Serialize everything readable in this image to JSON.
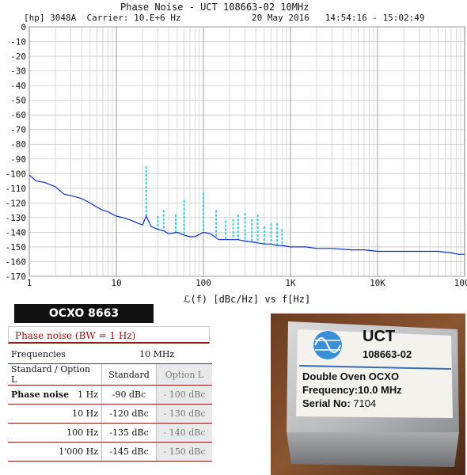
{
  "chart_data": {
    "type": "line",
    "title": "Phase Noise - UCT 108663-02 10MHz",
    "info_left": "[hp] 3048A  Carrier: 10.E+6 Hz",
    "info_right": "20 May 2016   14:54:16 - 15:02:49",
    "xlabel": "ℒ(f) [dBc/Hz] vs f[Hz]",
    "x_scale": "log",
    "xlim": [
      1,
      100000
    ],
    "ylim": [
      -170,
      0
    ],
    "grid": true,
    "x_tick_labels": [
      "1",
      "10",
      "100",
      "1K",
      "10K",
      "100K"
    ],
    "y_tick_labels": [
      "0",
      "-10",
      "-20",
      "-30",
      "-40",
      "-50",
      "-60",
      "-70",
      "-80",
      "-90",
      "-100",
      "-110",
      "-120",
      "-130",
      "-140",
      "-150",
      "-160",
      "-170"
    ],
    "series": [
      {
        "color": "#0b2bd6",
        "style": "solid",
        "x": [
          1,
          1.2,
          1.5,
          2,
          2.5,
          3,
          4,
          5,
          6,
          7,
          8,
          10,
          12,
          15,
          18,
          20,
          22,
          25,
          30,
          35,
          40,
          50,
          60,
          70,
          80,
          100,
          120,
          150,
          200,
          250,
          300,
          400,
          500,
          600,
          700,
          800,
          1000,
          1500,
          2000,
          3000,
          5000,
          7000,
          10000,
          15000,
          20000,
          30000,
          50000,
          70000,
          85000,
          100000
        ],
        "y": [
          -101,
          -105,
          -106,
          -109,
          -114,
          -115,
          -117,
          -120,
          -123,
          -125,
          -126,
          -129,
          -130,
          -132,
          -134,
          -135,
          -129,
          -136,
          -138,
          -139,
          -141,
          -140,
          -142,
          -143,
          -143,
          -140,
          -141,
          -145,
          -145,
          -145,
          -146,
          -147,
          -148,
          -148,
          -149,
          -149,
          -150,
          -150,
          -151,
          -151,
          -152,
          -152,
          -153,
          -153,
          -153,
          -153,
          -153,
          -154,
          -155,
          -155
        ]
      }
    ],
    "spurs": {
      "color": "#33ccdd",
      "style": "dashed",
      "points": [
        {
          "x": 22,
          "y": -95
        },
        {
          "x": 30,
          "y": -129
        },
        {
          "x": 35,
          "y": -125
        },
        {
          "x": 48,
          "y": -128
        },
        {
          "x": 60,
          "y": -118
        },
        {
          "x": 100,
          "y": -113
        },
        {
          "x": 140,
          "y": -125
        },
        {
          "x": 180,
          "y": -132
        },
        {
          "x": 220,
          "y": -131
        },
        {
          "x": 250,
          "y": -128
        },
        {
          "x": 300,
          "y": -127
        },
        {
          "x": 360,
          "y": -131
        },
        {
          "x": 420,
          "y": -128
        },
        {
          "x": 500,
          "y": -136
        },
        {
          "x": 600,
          "y": -134
        },
        {
          "x": 700,
          "y": -134
        },
        {
          "x": 800,
          "y": -138
        }
      ]
    }
  },
  "spec_card": {
    "title": "OCXO 8663",
    "subtitle": "Phase noise (BW = 1 Hz)",
    "frequencies_label": "Frequencies",
    "frequency_value": "10 MHz",
    "col_label": "Standard / Option L",
    "col_standard": "Standard",
    "col_option": "Option L",
    "rows": [
      {
        "label": "Phase noise",
        "offset": "1 Hz",
        "standard": "-90 dBc",
        "option": "- 100 dBc"
      },
      {
        "label": "",
        "offset": "10 Hz",
        "standard": "-120 dBc",
        "option": "- 130 dBc"
      },
      {
        "label": "",
        "offset": "100 Hz",
        "standard": "-135 dBc",
        "option": "- 140 dBc"
      },
      {
        "label": "",
        "offset": "1'000 Hz",
        "standard": "-145 dBc",
        "option": "- 150 dBc"
      }
    ]
  },
  "photo": {
    "brand": "UCT",
    "model": "108663-02",
    "line1": "Double Oven OCXO",
    "line2": "Frequency:10.0 MHz",
    "line3_prefix": "Serial No:",
    "serial": "7104"
  }
}
